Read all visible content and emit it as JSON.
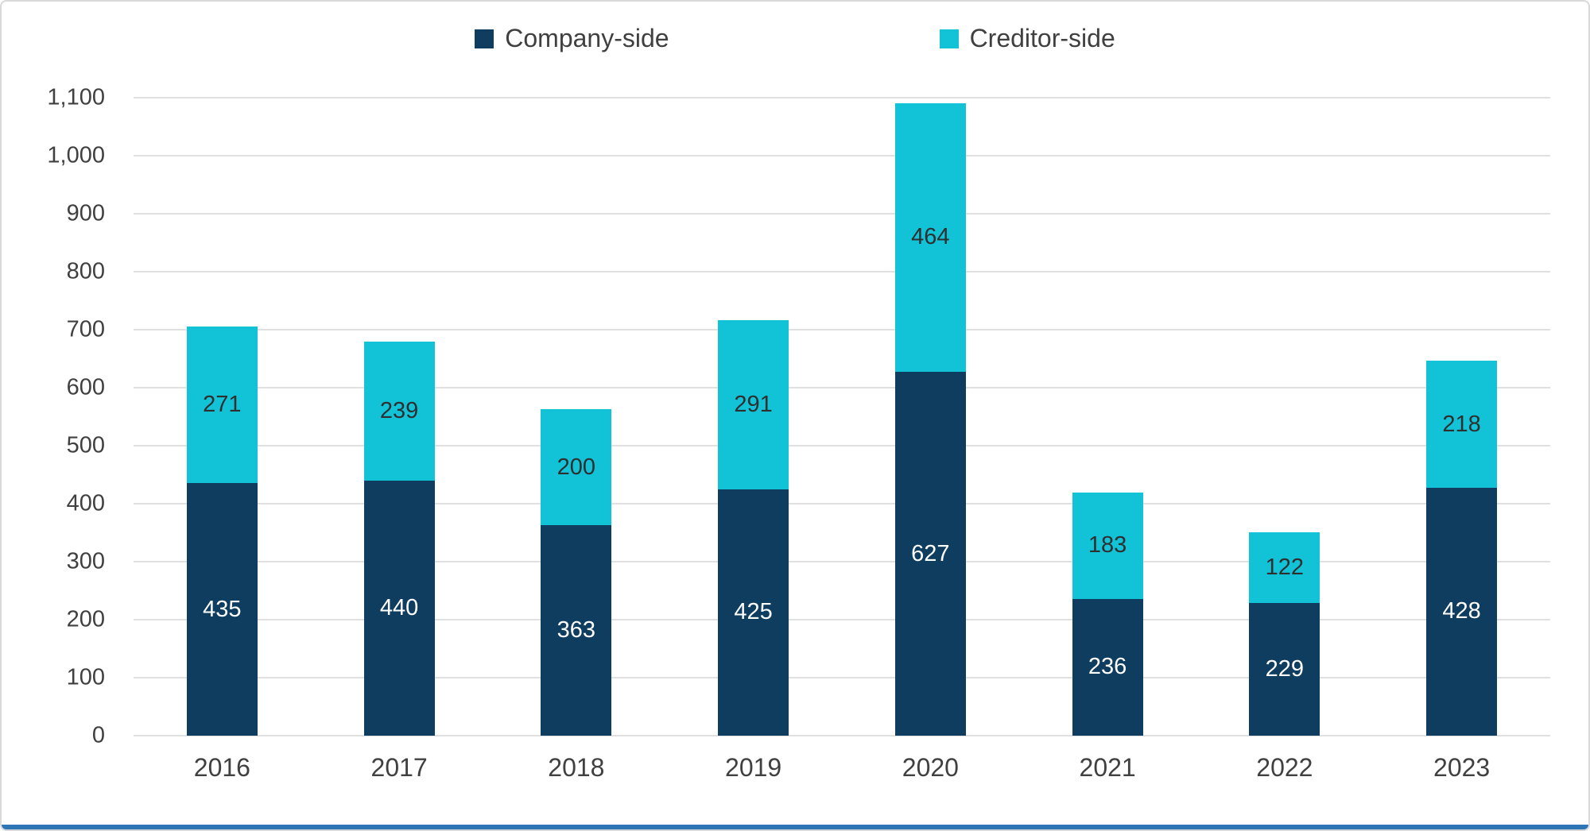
{
  "chart_data": {
    "type": "bar",
    "stacked": true,
    "title": "",
    "xlabel": "",
    "ylabel": "",
    "categories": [
      "2016",
      "2017",
      "2018",
      "2019",
      "2020",
      "2021",
      "2022",
      "2023"
    ],
    "series": [
      {
        "name": "Company-side",
        "color": "#0f3d5f",
        "label_color": "#ffffff",
        "values": [
          435,
          440,
          363,
          425,
          627,
          236,
          229,
          428
        ]
      },
      {
        "name": "Creditor-side",
        "color": "#12c2d7",
        "label_color": "#2f2f2f",
        "values": [
          271,
          239,
          200,
          291,
          464,
          183,
          122,
          218
        ]
      }
    ],
    "ylim": [
      0,
      1100
    ],
    "ytick_step": 100,
    "ytick_labels": [
      "0",
      "100",
      "200",
      "300",
      "400",
      "500",
      "600",
      "700",
      "800",
      "900",
      "1,000",
      "1,100"
    ],
    "grid": true,
    "gridline_color": "#e0e0e0",
    "legend_position": "top",
    "axis_text_color": "#404040",
    "frame_border_color": "#d9d9d9",
    "bottom_accent_color": "#2e75b6"
  }
}
